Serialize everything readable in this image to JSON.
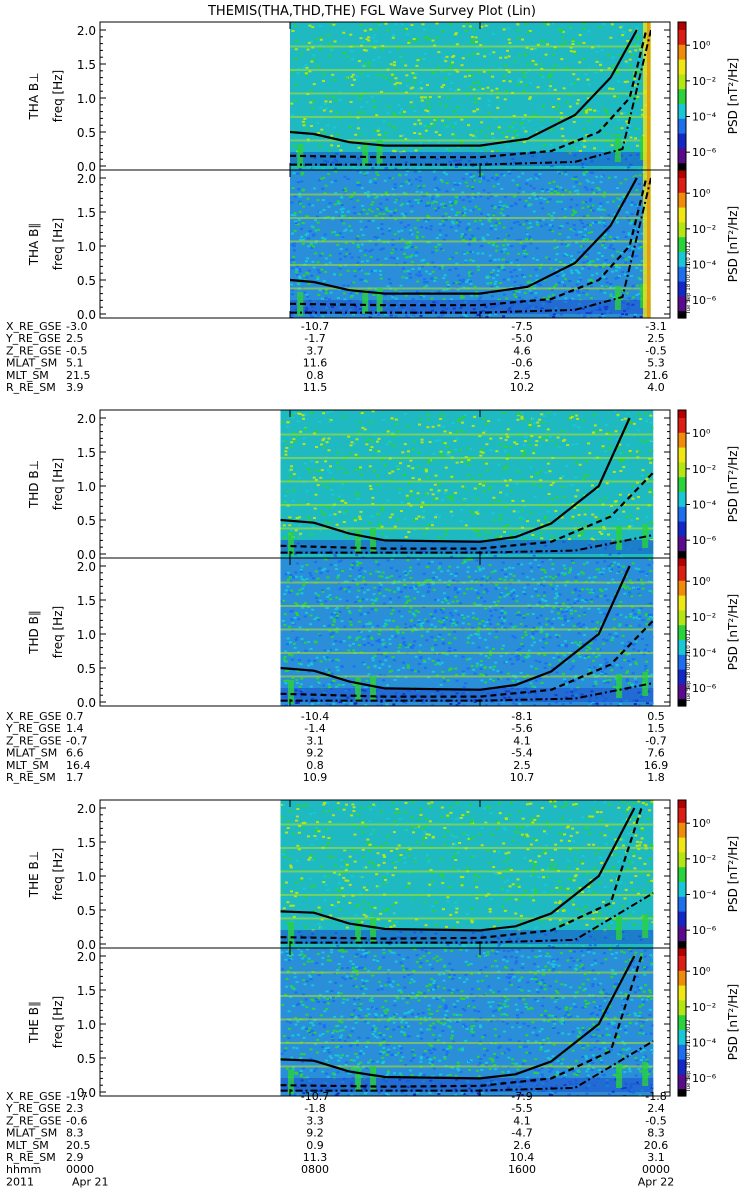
{
  "title": "THEMIS(THA,THD,THE) FGL Wave Survey Plot (Lin)",
  "colorbar": {
    "label": "PSD [nT²/Hz]",
    "ticks": [
      "10⁰",
      "10⁻²",
      "10⁻⁴",
      "10⁻⁶"
    ],
    "ticks_exponent": [
      0,
      -2,
      -4,
      -6
    ],
    "colors": [
      "#000000",
      "#5a0a8c",
      "#1428c8",
      "#1e6ef0",
      "#18c8d6",
      "#2ad23c",
      "#b4e614",
      "#f0e614",
      "#f08c0a",
      "#dc1e14",
      "#b40000"
    ]
  },
  "stamps": [
    "Tue Sep 18 00:12:10 2012",
    "Tue Sep 18 00:12:10 2012",
    "Tue Sep 18 00:12:11 2012"
  ],
  "y_axis": {
    "label": "freq [Hz]",
    "ticks": [
      "0.0",
      "0.5",
      "1.0",
      "1.5",
      "2.0"
    ],
    "range": [
      0,
      2
    ]
  },
  "chart_data": [
    {
      "type": "heatmap",
      "panel": "THA B⊥",
      "ylabel": "THA B⊥",
      "data_start_hour": 8.0,
      "data_end_hour": 23.2,
      "base_curve": [
        [
          8.0,
          0.5
        ],
        [
          9.0,
          0.47
        ],
        [
          10.5,
          0.35
        ],
        [
          12,
          0.3
        ],
        [
          16,
          0.3
        ],
        [
          18,
          0.4
        ],
        [
          20,
          0.75
        ],
        [
          21.5,
          1.3
        ],
        [
          22.6,
          2.0
        ]
      ],
      "half_curve": [
        [
          8.0,
          0.15
        ],
        [
          12,
          0.13
        ],
        [
          16,
          0.13
        ],
        [
          19,
          0.22
        ],
        [
          21,
          0.5
        ],
        [
          22.3,
          1.0
        ],
        [
          23.0,
          2.0
        ]
      ],
      "tenth_curve": [
        [
          8.0,
          0.02
        ],
        [
          16,
          0.02
        ],
        [
          20,
          0.06
        ],
        [
          22,
          0.25
        ],
        [
          23.2,
          2.0
        ]
      ]
    },
    {
      "type": "heatmap",
      "panel": "THA B∥",
      "ylabel": "THA B∥",
      "data_start_hour": 8.0,
      "data_end_hour": 23.2,
      "base_curve": [
        [
          8.0,
          0.5
        ],
        [
          9.0,
          0.47
        ],
        [
          10.5,
          0.35
        ],
        [
          12,
          0.3
        ],
        [
          16,
          0.3
        ],
        [
          18,
          0.4
        ],
        [
          20,
          0.75
        ],
        [
          21.5,
          1.3
        ],
        [
          22.6,
          2.0
        ]
      ],
      "half_curve": [
        [
          8.0,
          0.15
        ],
        [
          12,
          0.13
        ],
        [
          16,
          0.13
        ],
        [
          19,
          0.22
        ],
        [
          21,
          0.5
        ],
        [
          22.3,
          1.0
        ],
        [
          23.0,
          2.0
        ]
      ],
      "tenth_curve": [
        [
          8.0,
          0.02
        ],
        [
          16,
          0.02
        ],
        [
          20,
          0.06
        ],
        [
          22,
          0.25
        ],
        [
          23.2,
          2.0
        ]
      ]
    },
    {
      "type": "heatmap",
      "panel": "THD B⊥",
      "ylabel": "THD B⊥",
      "data_start_hour": 7.6,
      "data_end_hour": 23.3,
      "base_curve": [
        [
          7.6,
          0.5
        ],
        [
          9.0,
          0.46
        ],
        [
          10.5,
          0.3
        ],
        [
          12,
          0.2
        ],
        [
          16,
          0.18
        ],
        [
          17.5,
          0.25
        ],
        [
          19,
          0.45
        ],
        [
          21,
          1.0
        ],
        [
          22.3,
          2.0
        ]
      ],
      "half_curve": [
        [
          7.6,
          0.12
        ],
        [
          12,
          0.08
        ],
        [
          16,
          0.08
        ],
        [
          19,
          0.18
        ],
        [
          21.5,
          0.55
        ],
        [
          23.3,
          1.2
        ]
      ],
      "tenth_curve": [
        [
          7.6,
          0.02
        ],
        [
          16,
          0.02
        ],
        [
          20,
          0.05
        ],
        [
          23.3,
          0.28
        ]
      ]
    },
    {
      "type": "heatmap",
      "panel": "THD B∥",
      "ylabel": "THD B∥",
      "data_start_hour": 7.6,
      "data_end_hour": 23.3,
      "base_curve": [
        [
          7.6,
          0.5
        ],
        [
          9.0,
          0.46
        ],
        [
          10.5,
          0.3
        ],
        [
          12,
          0.2
        ],
        [
          16,
          0.18
        ],
        [
          17.5,
          0.25
        ],
        [
          19,
          0.45
        ],
        [
          21,
          1.0
        ],
        [
          22.3,
          2.0
        ]
      ],
      "half_curve": [
        [
          7.6,
          0.12
        ],
        [
          12,
          0.08
        ],
        [
          16,
          0.08
        ],
        [
          19,
          0.18
        ],
        [
          21.5,
          0.55
        ],
        [
          23.3,
          1.2
        ]
      ],
      "tenth_curve": [
        [
          7.6,
          0.02
        ],
        [
          16,
          0.02
        ],
        [
          20,
          0.05
        ],
        [
          23.3,
          0.28
        ]
      ]
    },
    {
      "type": "heatmap",
      "panel": "THE B⊥",
      "ylabel": "THE B⊥",
      "data_start_hour": 7.6,
      "data_end_hour": 23.3,
      "base_curve": [
        [
          7.6,
          0.48
        ],
        [
          9.0,
          0.46
        ],
        [
          10.5,
          0.3
        ],
        [
          12,
          0.22
        ],
        [
          16,
          0.2
        ],
        [
          17.5,
          0.26
        ],
        [
          19,
          0.45
        ],
        [
          21,
          1.0
        ],
        [
          22.5,
          2.0
        ]
      ],
      "half_curve": [
        [
          7.6,
          0.1
        ],
        [
          12,
          0.08
        ],
        [
          16,
          0.09
        ],
        [
          19,
          0.2
        ],
        [
          21.5,
          0.6
        ],
        [
          22.8,
          2.0
        ]
      ],
      "tenth_curve": [
        [
          7.6,
          0.02
        ],
        [
          16,
          0.02
        ],
        [
          20,
          0.06
        ],
        [
          23.3,
          0.75
        ]
      ]
    },
    {
      "type": "heatmap",
      "panel": "THE B∥",
      "ylabel": "THE B∥",
      "data_start_hour": 7.6,
      "data_end_hour": 23.3,
      "base_curve": [
        [
          7.6,
          0.48
        ],
        [
          9.0,
          0.46
        ],
        [
          10.5,
          0.3
        ],
        [
          12,
          0.22
        ],
        [
          16,
          0.2
        ],
        [
          17.5,
          0.26
        ],
        [
          19,
          0.45
        ],
        [
          21,
          1.0
        ],
        [
          22.5,
          2.0
        ]
      ],
      "half_curve": [
        [
          7.6,
          0.1
        ],
        [
          12,
          0.08
        ],
        [
          16,
          0.09
        ],
        [
          19,
          0.2
        ],
        [
          21.5,
          0.6
        ],
        [
          22.8,
          2.0
        ]
      ],
      "tenth_curve": [
        [
          7.6,
          0.02
        ],
        [
          16,
          0.02
        ],
        [
          20,
          0.06
        ],
        [
          23.3,
          0.75
        ]
      ]
    }
  ],
  "ephemeris": [
    {
      "probe": "THA",
      "rows": [
        {
          "label": "X_RE_GSE",
          "values": [
            "-3.0",
            "-10.7",
            "-7.5",
            "-3.1"
          ]
        },
        {
          "label": "Y_RE_GSE",
          "values": [
            "2.5",
            "-1.7",
            "-5.0",
            "2.5"
          ]
        },
        {
          "label": "Z_RE_GSE",
          "values": [
            "-0.5",
            "3.7",
            "4.6",
            "-0.5"
          ]
        },
        {
          "label": "MLAT_SM",
          "values": [
            "5.1",
            "11.6",
            "-0.6",
            "5.3"
          ]
        },
        {
          "label": "MLT_SM",
          "values": [
            "21.5",
            "0.8",
            "2.5",
            "21.6"
          ]
        },
        {
          "label": "R_RE_SM",
          "values": [
            "3.9",
            "11.5",
            "10.2",
            "4.0"
          ]
        }
      ]
    },
    {
      "probe": "THD",
      "rows": [
        {
          "label": "X_RE_GSE",
          "values": [
            "0.7",
            "-10.4",
            "-8.1",
            "0.5"
          ]
        },
        {
          "label": "Y_RE_GSE",
          "values": [
            "1.4",
            "-1.4",
            "-5.6",
            "1.5"
          ]
        },
        {
          "label": "Z_RE_GSE",
          "values": [
            "-0.7",
            "3.1",
            "4.1",
            "-0.7"
          ]
        },
        {
          "label": "MLAT_SM",
          "values": [
            "6.6",
            "9.2",
            "-5.4",
            "7.6"
          ]
        },
        {
          "label": "MLT_SM",
          "values": [
            "16.4",
            "0.8",
            "2.5",
            "16.9"
          ]
        },
        {
          "label": "R_RE_SM",
          "values": [
            "1.7",
            "10.9",
            "10.7",
            "1.8"
          ]
        }
      ]
    },
    {
      "probe": "THE",
      "rows": [
        {
          "label": "X_RE_GSE",
          "values": [
            "-1.7",
            "-10.7",
            "-7.9",
            "-1.8"
          ]
        },
        {
          "label": "Y_RE_GSE",
          "values": [
            "2.3",
            "-1.8",
            "-5.5",
            "2.4"
          ]
        },
        {
          "label": "Z_RE_GSE",
          "values": [
            "-0.6",
            "3.3",
            "4.1",
            "-0.5"
          ]
        },
        {
          "label": "MLAT_SM",
          "values": [
            "8.3",
            "9.2",
            "-4.7",
            "8.3"
          ]
        },
        {
          "label": "MLT_SM",
          "values": [
            "20.5",
            "0.9",
            "2.6",
            "20.6"
          ]
        },
        {
          "label": "R_RE_SM",
          "values": [
            "2.9",
            "11.3",
            "10.4",
            "3.1"
          ]
        },
        {
          "label": "hhmm",
          "values": [
            "0000",
            "0800",
            "1600",
            "0000"
          ]
        },
        {
          "label": "2011",
          "values": [
            "Apr 21",
            "",
            "",
            "Apr 22"
          ]
        }
      ]
    }
  ]
}
